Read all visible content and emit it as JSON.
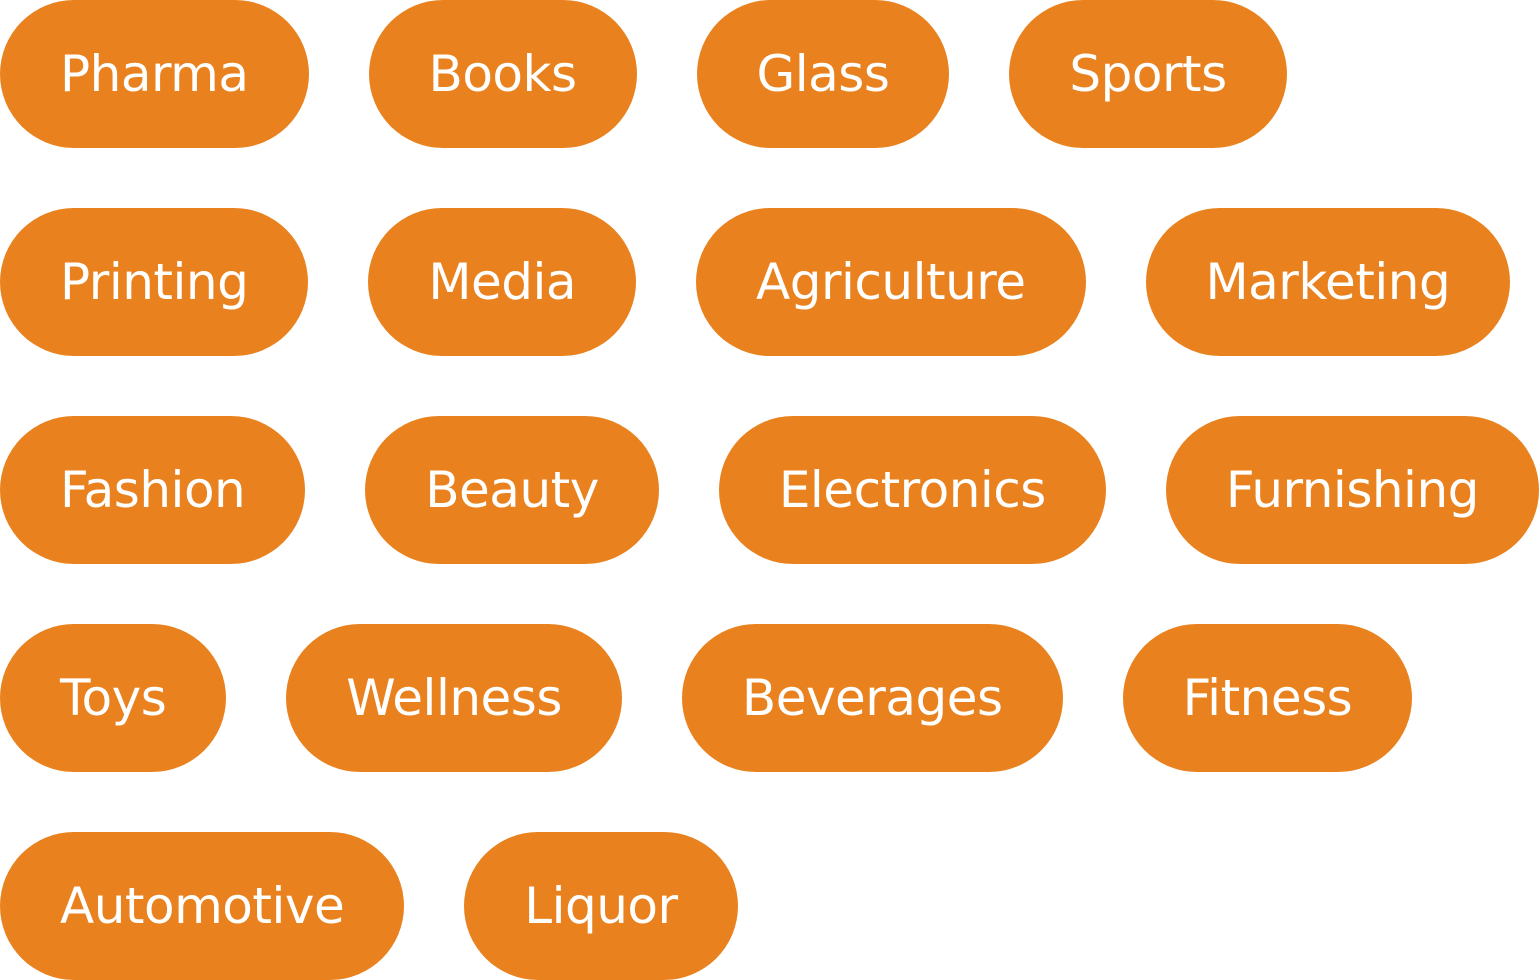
{
  "theme": {
    "chip_color": "#E9821E",
    "text_color": "#FFFFFF",
    "background": "#FFFFFF"
  },
  "rows": [
    {
      "chips": [
        {
          "label": "Pharma"
        },
        {
          "label": "Books"
        },
        {
          "label": "Glass"
        },
        {
          "label": "Sports"
        }
      ]
    },
    {
      "chips": [
        {
          "label": "Printing"
        },
        {
          "label": "Media"
        },
        {
          "label": "Agriculture"
        },
        {
          "label": "Marketing"
        }
      ]
    },
    {
      "chips": [
        {
          "label": "Fashion"
        },
        {
          "label": "Beauty"
        },
        {
          "label": "Electronics"
        },
        {
          "label": "Furnishing"
        }
      ]
    },
    {
      "chips": [
        {
          "label": "Toys"
        },
        {
          "label": "Wellness"
        },
        {
          "label": "Beverages"
        },
        {
          "label": "Fitness"
        }
      ]
    },
    {
      "chips": [
        {
          "label": "Automotive"
        },
        {
          "label": "Liquor"
        }
      ]
    }
  ]
}
